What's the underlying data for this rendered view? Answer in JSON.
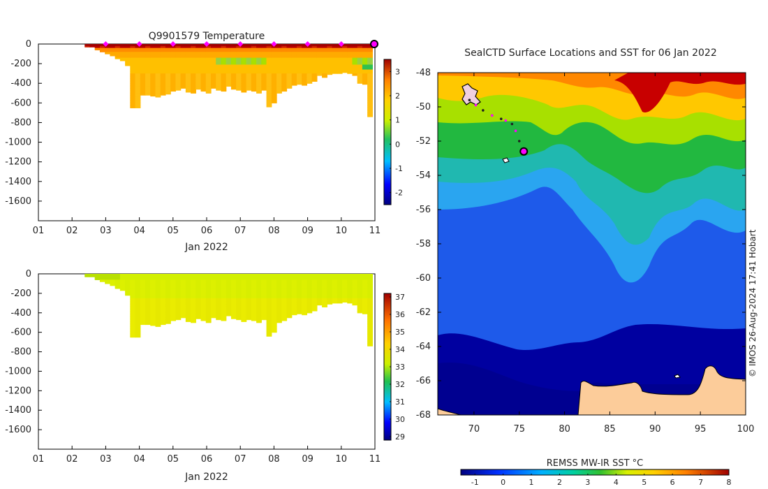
{
  "credit": "© IMOS 26-Aug-2024 17:41 Hobart",
  "chart_data": [
    {
      "type": "heatmap",
      "title": "Q9901579  Temperature",
      "xlabel": "Jan 2022",
      "ylabel": "",
      "x_tick_labels": [
        "01",
        "02",
        "03",
        "04",
        "05",
        "06",
        "07",
        "08",
        "09",
        "10",
        "11"
      ],
      "y_ticks": [
        0,
        -200,
        -400,
        -600,
        -800,
        -1000,
        -1200,
        -1400,
        -1600
      ],
      "ylim": [
        -1800,
        0
      ],
      "xlim": [
        1,
        11
      ],
      "profile_markers_day": [
        3,
        4,
        5,
        6,
        7,
        8,
        9,
        10
      ],
      "current_marker_day": 11,
      "colorbar": {
        "ticks": [
          3,
          2,
          1,
          0,
          -1,
          -2
        ],
        "range": [
          -2.5,
          3.5
        ]
      },
      "profiles": {
        "days": [
          2.45,
          2.6,
          2.75,
          2.9,
          3.05,
          3.2,
          3.35,
          3.5,
          3.65,
          3.8,
          3.95,
          4.1,
          4.25,
          4.4,
          4.55,
          4.7,
          4.85,
          5.0,
          5.15,
          5.3,
          5.45,
          5.6,
          5.75,
          5.9,
          6.05,
          6.2,
          6.35,
          6.5,
          6.65,
          6.8,
          6.95,
          7.1,
          7.25,
          7.4,
          7.55,
          7.7,
          7.85,
          8.0,
          8.15,
          8.3,
          8.45,
          8.6,
          8.75,
          8.9,
          9.05,
          9.2,
          9.35,
          9.5,
          9.65,
          9.8,
          9.95,
          10.1,
          10.25,
          10.4,
          10.55,
          10.7,
          10.85
        ],
        "max_depths": [
          30,
          30,
          60,
          80,
          100,
          120,
          150,
          170,
          220,
          650,
          650,
          520,
          520,
          530,
          540,
          520,
          510,
          480,
          470,
          450,
          490,
          500,
          460,
          480,
          500,
          450,
          470,
          480,
          430,
          460,
          470,
          490,
          470,
          480,
          500,
          470,
          640,
          600,
          500,
          480,
          450,
          420,
          410,
          420,
          400,
          380,
          320,
          340,
          310,
          300,
          300,
          290,
          300,
          320,
          400,
          410,
          740
        ]
      }
    },
    {
      "type": "heatmap",
      "title": "",
      "xlabel": "Jan 2022",
      "ylabel": "",
      "x_tick_labels": [
        "01",
        "02",
        "03",
        "04",
        "05",
        "06",
        "07",
        "08",
        "09",
        "10",
        "11"
      ],
      "y_ticks": [
        0,
        -200,
        -400,
        -600,
        -800,
        -1000,
        -1200,
        -1400,
        -1600
      ],
      "ylim": [
        -1800,
        0
      ],
      "xlim": [
        1,
        11
      ],
      "colorbar": {
        "ticks": [
          37,
          36,
          35,
          34,
          33,
          32,
          31,
          30,
          29
        ],
        "range": [
          28.8,
          37.2
        ]
      }
    },
    {
      "type": "heatmap",
      "title": "SealCTD Surface Locations and SST for 06 Jan 2022",
      "xlabel": "",
      "ylabel": "",
      "x_ticks": [
        70,
        75,
        80,
        85,
        90,
        95,
        100
      ],
      "y_ticks": [
        -48,
        -50,
        -52,
        -54,
        -56,
        -58,
        -60,
        -62,
        -64,
        -66,
        -68
      ],
      "xlim": [
        66,
        100
      ],
      "ylim": [
        -68,
        -48
      ],
      "colorbar": {
        "label": "REMSS MW-IR SST °C",
        "ticks": [
          -1,
          0,
          1,
          2,
          3,
          4,
          5,
          6,
          7,
          8
        ],
        "range": [
          -1.5,
          8
        ]
      },
      "track": {
        "lon": [
          69.5,
          70.2,
          71.0,
          72.0,
          73.0,
          73.5,
          74.2,
          74.6,
          75.0,
          75.5
        ],
        "lat": [
          -49.6,
          -49.9,
          -50.2,
          -50.5,
          -50.7,
          -50.8,
          -51.0,
          -51.4,
          -52.0,
          -52.6
        ]
      },
      "current_position": {
        "lon": 75.5,
        "lat": -52.6
      }
    }
  ]
}
